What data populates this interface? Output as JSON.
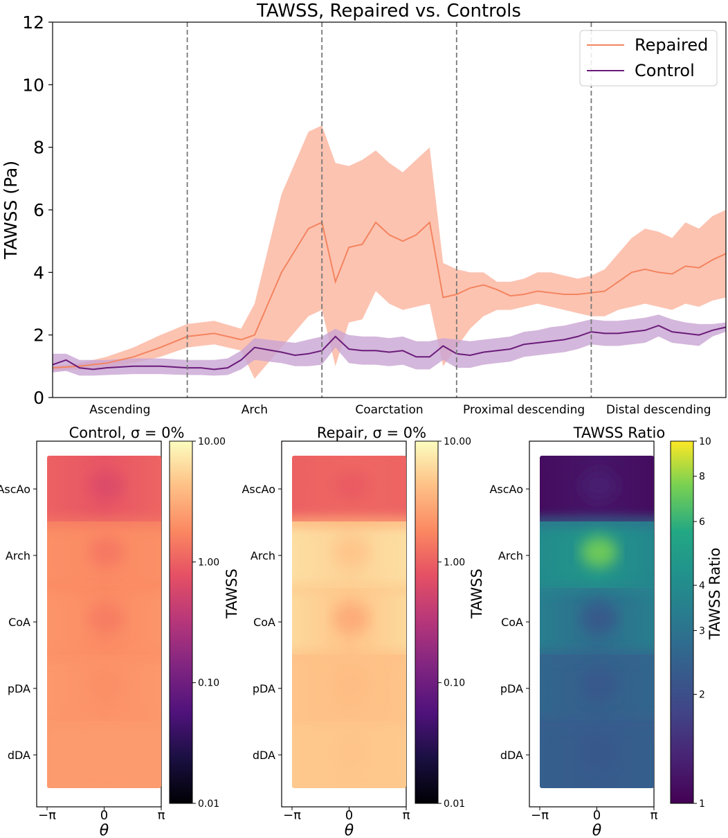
{
  "chart_data": [
    {
      "type": "line",
      "title": "TAWSS, Repaired vs. Controls",
      "xlabel": "",
      "ylabel": "TAWSS (Pa)",
      "ylim": [
        0,
        12
      ],
      "yticks": [
        0,
        2,
        4,
        6,
        8,
        10,
        12
      ],
      "xlim": [
        0,
        100
      ],
      "segments": [
        "Ascending",
        "Arch",
        "Coarctation",
        "Proximal descending",
        "Distal descending"
      ],
      "legend_position": "top-right",
      "series": [
        {
          "name": "Repaired",
          "color": "#f4845f",
          "band_color": "#fbb9a3",
          "x": [
            0,
            4,
            8,
            12,
            16,
            20,
            24,
            28,
            30,
            34,
            38,
            40,
            42,
            44,
            46,
            48,
            50,
            52,
            54,
            56,
            58,
            60,
            62,
            64,
            66,
            68,
            70,
            72,
            74,
            76,
            78,
            80,
            82,
            84,
            86,
            88,
            90,
            92,
            94,
            96,
            98,
            100
          ],
          "mean": [
            0.95,
            1.0,
            1.1,
            1.3,
            1.6,
            1.95,
            2.05,
            1.85,
            2.0,
            4.0,
            5.4,
            5.6,
            3.7,
            4.8,
            4.9,
            5.6,
            5.2,
            5.0,
            5.2,
            5.6,
            3.2,
            3.3,
            3.5,
            3.6,
            3.45,
            3.25,
            3.3,
            3.4,
            3.35,
            3.3,
            3.3,
            3.35,
            3.4,
            3.7,
            4.0,
            4.1,
            4.0,
            3.95,
            4.2,
            4.15,
            4.4,
            4.6
          ],
          "upper": [
            1.0,
            1.1,
            1.3,
            1.6,
            2.0,
            2.35,
            2.45,
            2.2,
            3.0,
            6.5,
            8.5,
            8.7,
            7.5,
            7.4,
            7.6,
            7.9,
            7.5,
            7.2,
            7.6,
            8.0,
            4.3,
            4.1,
            4.0,
            4.0,
            3.7,
            3.7,
            3.8,
            4.0,
            4.0,
            3.9,
            3.8,
            3.9,
            4.1,
            4.6,
            5.1,
            5.4,
            5.3,
            5.1,
            5.6,
            5.4,
            5.8,
            6.0
          ],
          "lower": [
            0.85,
            0.9,
            0.95,
            1.1,
            1.3,
            1.6,
            1.7,
            1.5,
            0.6,
            1.6,
            2.6,
            2.8,
            1.0,
            2.4,
            2.5,
            3.4,
            3.0,
            2.8,
            2.9,
            3.0,
            1.0,
            1.6,
            2.2,
            2.6,
            2.8,
            2.8,
            2.9,
            3.0,
            2.9,
            2.8,
            2.7,
            2.6,
            2.6,
            2.8,
            2.9,
            3.0,
            2.9,
            2.8,
            3.0,
            2.9,
            3.1,
            3.2
          ]
        },
        {
          "name": "Control",
          "color": "#6a1b7a",
          "band_color": "#c9a5d3",
          "x": [
            0,
            2,
            4,
            6,
            8,
            12,
            16,
            20,
            22,
            24,
            26,
            28,
            30,
            34,
            36,
            38,
            40,
            42,
            44,
            46,
            48,
            50,
            52,
            54,
            56,
            58,
            60,
            62,
            64,
            66,
            68,
            70,
            72,
            74,
            76,
            78,
            80,
            82,
            84,
            86,
            88,
            90,
            92,
            94,
            96,
            98,
            100
          ],
          "mean": [
            1.05,
            1.2,
            0.95,
            0.9,
            0.95,
            1.0,
            1.0,
            0.95,
            0.95,
            0.9,
            0.95,
            1.2,
            1.6,
            1.45,
            1.35,
            1.4,
            1.5,
            1.95,
            1.55,
            1.5,
            1.5,
            1.45,
            1.5,
            1.3,
            1.3,
            1.65,
            1.4,
            1.35,
            1.45,
            1.5,
            1.55,
            1.7,
            1.75,
            1.8,
            1.85,
            1.95,
            2.1,
            2.05,
            2.05,
            2.1,
            2.15,
            2.3,
            2.1,
            2.05,
            2.0,
            2.15,
            2.25
          ],
          "upper": [
            1.4,
            1.4,
            1.2,
            1.2,
            1.2,
            1.25,
            1.25,
            1.2,
            1.2,
            1.2,
            1.25,
            1.5,
            1.9,
            1.8,
            1.75,
            1.85,
            1.95,
            2.2,
            2.0,
            1.95,
            1.95,
            1.9,
            1.95,
            1.8,
            1.8,
            1.9,
            1.85,
            1.8,
            1.85,
            1.9,
            1.95,
            2.1,
            2.15,
            2.25,
            2.3,
            2.4,
            2.5,
            2.45,
            2.45,
            2.5,
            2.55,
            2.65,
            2.5,
            2.4,
            2.35,
            2.35,
            2.4
          ],
          "lower": [
            0.8,
            0.85,
            0.7,
            0.7,
            0.72,
            0.75,
            0.75,
            0.72,
            0.72,
            0.7,
            0.72,
            0.9,
            1.2,
            1.1,
            1.0,
            1.0,
            1.05,
            1.6,
            1.1,
            1.05,
            1.05,
            1.0,
            1.05,
            0.9,
            0.9,
            1.2,
            0.95,
            0.95,
            1.05,
            1.1,
            1.15,
            1.3,
            1.35,
            1.4,
            1.45,
            1.55,
            1.7,
            1.65,
            1.65,
            1.7,
            1.75,
            1.95,
            1.75,
            1.7,
            1.65,
            1.95,
            2.1
          ]
        }
      ]
    },
    {
      "type": "heatmap",
      "title": "Control, σ = 0%",
      "xlabel": "θ",
      "xticks": [
        "−π",
        "0",
        "π"
      ],
      "yticks": [
        "AscAo",
        "Arch",
        "CoA",
        "pDA",
        "dDA"
      ],
      "colormap": "magma",
      "colorbar_label": "TAWSS",
      "colorbar_scale": "log",
      "colorbar_range": [
        0.01,
        10
      ],
      "colorbar_ticks": [
        "10.00",
        "1.00",
        "0.10",
        "0.01"
      ],
      "colorbar_tick_values": [
        10,
        1,
        0.1,
        0.01
      ],
      "rows": [
        {
          "segment": "AscAo",
          "left": 1.0,
          "mid": 0.85,
          "right": 1.05,
          "spot": 0.65
        },
        {
          "segment": "Arch",
          "left": 2.0,
          "mid": 1.9,
          "right": 2.0,
          "spot": 1.4
        },
        {
          "segment": "CoA",
          "left": 2.2,
          "mid": 1.9,
          "right": 2.2,
          "spot": 1.5
        },
        {
          "segment": "pDA",
          "left": 2.3,
          "mid": 2.1,
          "right": 2.3,
          "spot": 2.0
        },
        {
          "segment": "dDA",
          "left": 2.4,
          "mid": 2.4,
          "right": 2.4,
          "spot": 2.4
        }
      ]
    },
    {
      "type": "heatmap",
      "title": "Repair, σ = 0%",
      "xlabel": "θ",
      "xticks": [
        "−π",
        "0",
        "π"
      ],
      "yticks": [
        "AscAo",
        "Arch",
        "CoA",
        "pDA",
        "dDA"
      ],
      "colormap": "magma",
      "colorbar_label": "TAWSS",
      "colorbar_scale": "log",
      "colorbar_range": [
        0.01,
        10
      ],
      "colorbar_ticks": [
        "10.00",
        "1.00",
        "0.10",
        "0.01"
      ],
      "colorbar_tick_values": [
        10,
        1,
        0.1,
        0.01
      ],
      "rows": [
        {
          "segment": "AscAo",
          "left": 1.0,
          "mid": 1.1,
          "right": 1.05,
          "spot": 0.9
        },
        {
          "segment": "Arch",
          "left": 6.5,
          "mid": 5.5,
          "right": 6.5,
          "spot": 4.5
        },
        {
          "segment": "CoA",
          "left": 6.0,
          "mid": 4.5,
          "right": 6.0,
          "spot": 3.0
        },
        {
          "segment": "pDA",
          "left": 4.5,
          "mid": 4.2,
          "right": 4.5,
          "spot": 4.0
        },
        {
          "segment": "dDA",
          "left": 4.8,
          "mid": 4.6,
          "right": 4.8,
          "spot": 4.5
        }
      ]
    },
    {
      "type": "heatmap",
      "title": "TAWSS Ratio",
      "xlabel": "θ",
      "xticks": [
        "−π",
        "0",
        "π"
      ],
      "yticks": [
        "AscAo",
        "Arch",
        "CoA",
        "pDA",
        "dDA"
      ],
      "colormap": "viridis",
      "colorbar_label": "TAWSS Ratio",
      "colorbar_scale": "log",
      "colorbar_range": [
        1,
        10
      ],
      "colorbar_ticks": [
        "10",
        "8",
        "6",
        "4",
        "3",
        "2",
        "1"
      ],
      "colorbar_tick_values": [
        10,
        8,
        6,
        4,
        3,
        2,
        1
      ],
      "rows": [
        {
          "segment": "AscAo",
          "left": 1.1,
          "mid": 1.2,
          "right": 1.1,
          "spot": 1.3
        },
        {
          "segment": "Arch",
          "left": 4.0,
          "mid": 4.5,
          "right": 3.8,
          "spot": 7.5
        },
        {
          "segment": "CoA",
          "left": 3.4,
          "mid": 2.8,
          "right": 3.4,
          "spot": 2.2
        },
        {
          "segment": "pDA",
          "left": 2.6,
          "mid": 2.4,
          "right": 2.6,
          "spot": 2.2
        },
        {
          "segment": "dDA",
          "left": 2.4,
          "mid": 2.3,
          "right": 2.4,
          "spot": 2.2
        }
      ]
    }
  ]
}
